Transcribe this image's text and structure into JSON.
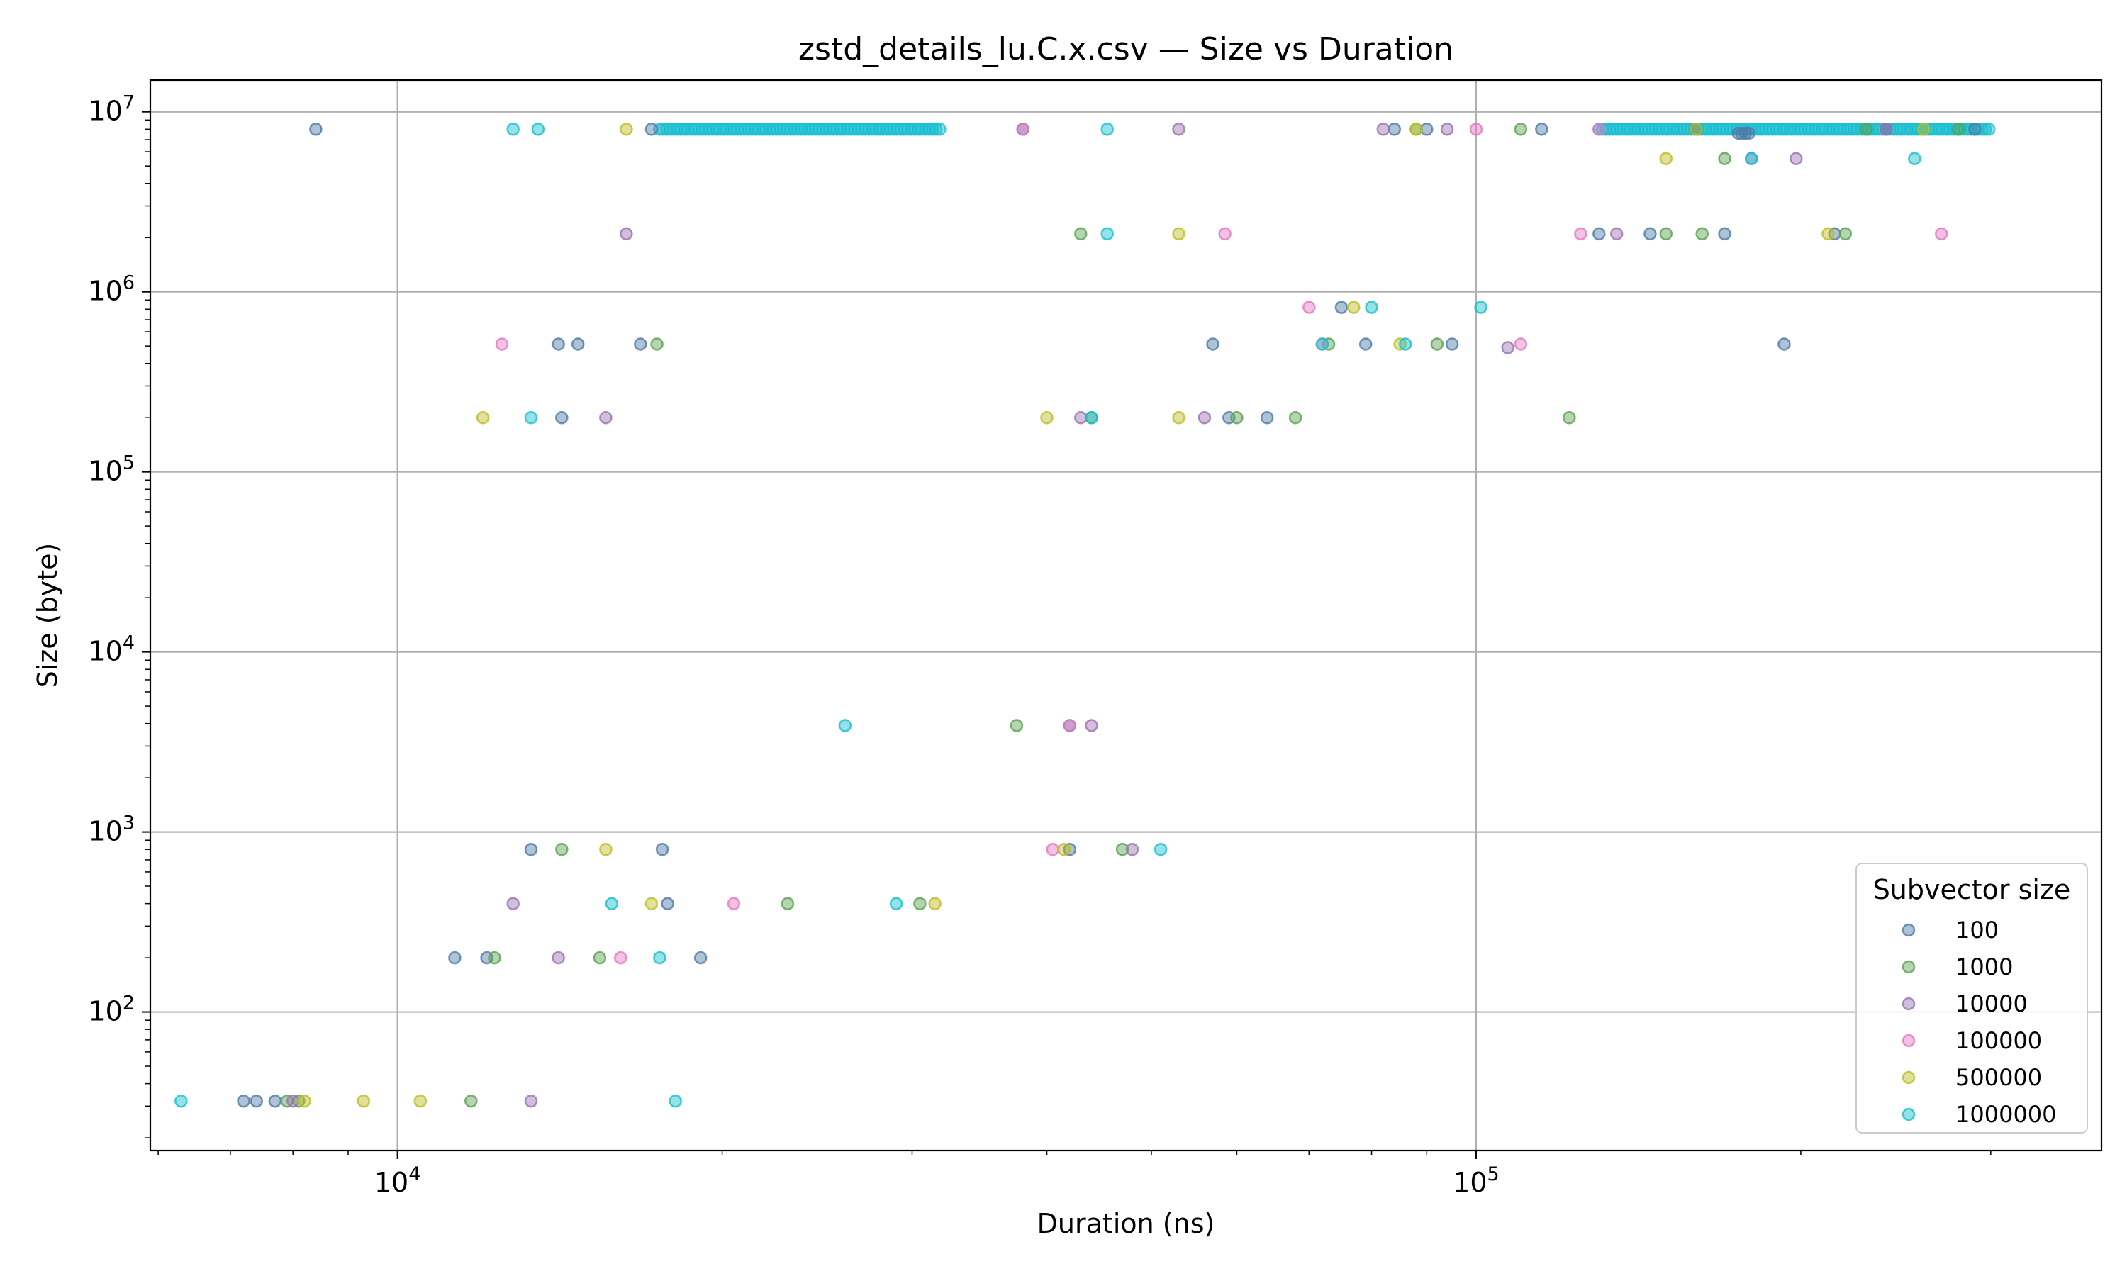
{
  "chart_data": {
    "type": "scatter",
    "title": "zstd_details_lu.C.x.csv — Size vs Duration",
    "xlabel": "Duration (ns)",
    "ylabel": "Size (byte)",
    "xscale": "log",
    "yscale": "log",
    "xlim": [
      5900,
      380000
    ],
    "ylim": [
      17,
      15000000
    ],
    "grid": true,
    "x_ticks": [
      {
        "base": "10",
        "exp": "4",
        "value": 10000
      },
      {
        "base": "10",
        "exp": "5",
        "value": 100000
      }
    ],
    "y_ticks": [
      {
        "base": "10",
        "exp": "2",
        "value": 100
      },
      {
        "base": "10",
        "exp": "3",
        "value": 1000
      },
      {
        "base": "10",
        "exp": "4",
        "value": 10000
      },
      {
        "base": "10",
        "exp": "5",
        "value": 100000
      },
      {
        "base": "10",
        "exp": "6",
        "value": 1000000
      },
      {
        "base": "10",
        "exp": "7",
        "value": 10000000
      }
    ],
    "legend": {
      "title": "Subvector size",
      "placement": "lower-right"
    },
    "series": [
      {
        "name": "100",
        "color": "#4e79a7",
        "points": [
          [
            8400,
            8000000
          ],
          [
            7200,
            32
          ],
          [
            7400,
            32
          ],
          [
            7700,
            32
          ],
          [
            11300,
            200
          ],
          [
            12100,
            200
          ],
          [
            13300,
            800
          ],
          [
            14100,
            512000
          ],
          [
            14200,
            200000
          ],
          [
            14700,
            512000
          ],
          [
            16800,
            512000
          ],
          [
            17600,
            800
          ],
          [
            17800,
            400
          ],
          [
            19100,
            200
          ],
          [
            17200,
            8000000
          ],
          [
            38000,
            8000000
          ],
          [
            42000,
            800
          ],
          [
            42000,
            3900
          ],
          [
            57000,
            512000
          ],
          [
            59000,
            200000
          ],
          [
            64000,
            200000
          ],
          [
            75000,
            820000
          ],
          [
            79000,
            512000
          ],
          [
            84000,
            8000000
          ],
          [
            90000,
            8000000
          ],
          [
            95000,
            512000
          ],
          [
            115000,
            8000000
          ],
          [
            130000,
            2100000
          ],
          [
            145000,
            2100000
          ],
          [
            160000,
            8000000
          ],
          [
            170000,
            2100000
          ],
          [
            193000,
            512000
          ],
          [
            215000,
            2100000
          ],
          [
            240000,
            8000000
          ],
          [
            290000,
            8000000
          ]
        ]
      },
      {
        "name": "1000",
        "color": "#59a14f",
        "points": [
          [
            7900,
            32
          ],
          [
            8100,
            32
          ],
          [
            11700,
            32
          ],
          [
            12300,
            200
          ],
          [
            14200,
            800
          ],
          [
            15400,
            200
          ],
          [
            17400,
            512000
          ],
          [
            23000,
            400
          ],
          [
            30500,
            400
          ],
          [
            37500,
            3900
          ],
          [
            43000,
            2100000
          ],
          [
            44000,
            200000
          ],
          [
            47000,
            800
          ],
          [
            60000,
            200000
          ],
          [
            68000,
            200000
          ],
          [
            73000,
            512000
          ],
          [
            88000,
            8000000
          ],
          [
            92000,
            512000
          ],
          [
            110000,
            8000000
          ],
          [
            122000,
            200000
          ],
          [
            150000,
            2100000
          ],
          [
            162000,
            2100000
          ],
          [
            170000,
            5500000
          ],
          [
            220000,
            2100000
          ],
          [
            230000,
            8000000
          ],
          [
            280000,
            8000000
          ]
        ]
      },
      {
        "name": "10000",
        "color": "#9b72b0",
        "points": [
          [
            8000,
            32
          ],
          [
            12800,
            400
          ],
          [
            13300,
            32
          ],
          [
            14100,
            200
          ],
          [
            16300,
            2100000
          ],
          [
            15600,
            200000
          ],
          [
            44000,
            3900
          ],
          [
            43000,
            200000
          ],
          [
            48000,
            800
          ],
          [
            53000,
            8000000
          ],
          [
            56000,
            200000
          ],
          [
            82000,
            8000000
          ],
          [
            94000,
            8000000
          ],
          [
            107000,
            490000
          ],
          [
            135000,
            2100000
          ],
          [
            180000,
            5500000
          ],
          [
            198000,
            5500000
          ],
          [
            240000,
            8000000
          ]
        ]
      },
      {
        "name": "100000",
        "color": "#e377c2",
        "points": [
          [
            12500,
            512000
          ],
          [
            16100,
            200
          ],
          [
            20500,
            400
          ],
          [
            38000,
            8000000
          ],
          [
            40500,
            800
          ],
          [
            42000,
            3900
          ],
          [
            58500,
            2100000
          ],
          [
            70000,
            820000
          ],
          [
            72000,
            512000
          ],
          [
            100000,
            8000000
          ],
          [
            110000,
            512000
          ],
          [
            125000,
            2100000
          ],
          [
            130000,
            8000000
          ],
          [
            270000,
            2100000
          ]
        ]
      },
      {
        "name": "500000",
        "color": "#bcbd22",
        "points": [
          [
            8200,
            32
          ],
          [
            9300,
            32
          ],
          [
            10500,
            32
          ],
          [
            12000,
            200000
          ],
          [
            15600,
            800
          ],
          [
            16300,
            8000000
          ],
          [
            17200,
            400
          ],
          [
            31500,
            400
          ],
          [
            40000,
            200000
          ],
          [
            41500,
            800
          ],
          [
            53000,
            2100000
          ],
          [
            53000,
            200000
          ],
          [
            77000,
            820000
          ],
          [
            85000,
            512000
          ],
          [
            88000,
            8000000
          ],
          [
            150000,
            5500000
          ],
          [
            160000,
            8000000
          ],
          [
            212000,
            2100000
          ],
          [
            260000,
            8000000
          ]
        ]
      },
      {
        "name": "1000000",
        "color": "#17becf",
        "points": [
          [
            6300,
            32
          ],
          [
            12800,
            8000000
          ],
          [
            13500,
            8000000
          ],
          [
            13300,
            200000
          ],
          [
            15800,
            400
          ],
          [
            17500,
            200
          ],
          [
            18100,
            32
          ],
          [
            26000,
            3900
          ],
          [
            29000,
            400
          ],
          [
            44000,
            200000
          ],
          [
            45500,
            2100000
          ],
          [
            45500,
            8000000
          ],
          [
            51000,
            800
          ],
          [
            72000,
            512000
          ],
          [
            80000,
            820000
          ],
          [
            86000,
            512000
          ],
          [
            101000,
            820000
          ],
          [
            180000,
            5500000
          ],
          [
            255000,
            5500000
          ]
        ]
      }
    ],
    "bands": [
      {
        "series": "1000000",
        "color": "#17becf",
        "y": 8000000,
        "x_start": 17500,
        "x_end": 32000
      },
      {
        "series": "1000000",
        "color": "#17becf",
        "y": 8000000,
        "x_start": 130000,
        "x_end": 300000
      },
      {
        "series": "100",
        "color": "#4e79a7",
        "y": 7600000,
        "x_start": 175000,
        "x_end": 180000
      }
    ]
  }
}
